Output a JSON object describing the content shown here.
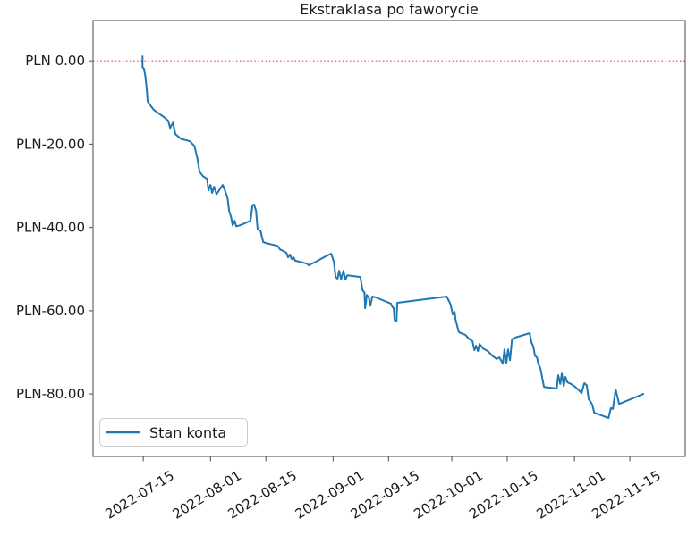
{
  "chart_data": {
    "type": "line",
    "title": "Ekstraklasa po faworycie",
    "x_axis": {
      "unit": "date",
      "tick_labels": [
        "2022-07-15",
        "2022-08-01",
        "2022-08-15",
        "2022-09-01",
        "2022-09-15",
        "2022-10-01",
        "2022-10-15",
        "2022-11-01",
        "2022-11-15"
      ],
      "tick_day_offsets": [
        0,
        17,
        31,
        48,
        62,
        78,
        92,
        109,
        123
      ],
      "range_days": [
        -12.7,
        137.0
      ],
      "label_rotation_deg": 32
    },
    "y_axis": {
      "currency": "PLN",
      "tick_labels": [
        "PLN 0.00",
        "PLN-20.00",
        "PLN-40.00",
        "PLN-60.00",
        "PLN-80.00"
      ],
      "tick_values": [
        0,
        -20,
        -40,
        -60,
        -80
      ],
      "range": [
        -95.0,
        9.7
      ]
    },
    "grid": false,
    "reference_line": {
      "value": 0,
      "style": "dotted",
      "color": "#ff3232"
    },
    "legend": {
      "position": "lower left",
      "entries": [
        {
          "label": "Stan konta",
          "color": "#1f77b4"
        }
      ]
    },
    "colors": {
      "line": "#1f77b4",
      "zero_line": "#ff3232",
      "spine": "#666666",
      "text": "#1a1a1a",
      "legend_border": "#cccccc",
      "background": "#ffffff"
    },
    "series": [
      {
        "name": "Stan konta",
        "color": "#1f77b4",
        "x_unit": "days_since_2022-07-15",
        "points": [
          [
            -0.2,
            1.1
          ],
          [
            -0.2,
            -1.5
          ],
          [
            0.2,
            -1.9
          ],
          [
            0.5,
            -3.6
          ],
          [
            0.9,
            -6.9
          ],
          [
            1.1,
            -9.7
          ],
          [
            1.8,
            -10.7
          ],
          [
            2.7,
            -11.8
          ],
          [
            5.2,
            -13.5
          ],
          [
            6.3,
            -14.4
          ],
          [
            6.8,
            -16.1
          ],
          [
            7.5,
            -14.8
          ],
          [
            8.1,
            -17.6
          ],
          [
            9.5,
            -18.7
          ],
          [
            11.8,
            -19.3
          ],
          [
            12.9,
            -20.4
          ],
          [
            13.3,
            -21.9
          ],
          [
            13.8,
            -24.0
          ],
          [
            14.2,
            -26.6
          ],
          [
            15.1,
            -27.7
          ],
          [
            16.1,
            -28.3
          ],
          [
            16.5,
            -31.1
          ],
          [
            17.0,
            -29.8
          ],
          [
            17.4,
            -31.7
          ],
          [
            17.9,
            -30.2
          ],
          [
            18.5,
            -32.0
          ],
          [
            20.1,
            -29.8
          ],
          [
            20.8,
            -31.5
          ],
          [
            21.3,
            -33.0
          ],
          [
            21.7,
            -36.0
          ],
          [
            22.2,
            -37.5
          ],
          [
            22.6,
            -39.5
          ],
          [
            23.1,
            -38.4
          ],
          [
            23.5,
            -39.7
          ],
          [
            24.4,
            -39.5
          ],
          [
            27.1,
            -38.4
          ],
          [
            27.6,
            -34.7
          ],
          [
            28.0,
            -34.5
          ],
          [
            28.5,
            -36.0
          ],
          [
            28.9,
            -40.5
          ],
          [
            29.6,
            -40.8
          ],
          [
            30.1,
            -42.7
          ],
          [
            30.3,
            -43.5
          ],
          [
            31.2,
            -43.8
          ],
          [
            33.9,
            -44.4
          ],
          [
            34.6,
            -45.3
          ],
          [
            35.5,
            -45.7
          ],
          [
            36.2,
            -46.1
          ],
          [
            36.6,
            -47.2
          ],
          [
            37.1,
            -46.5
          ],
          [
            37.5,
            -47.6
          ],
          [
            38.0,
            -47.2
          ],
          [
            38.4,
            -48.0
          ],
          [
            41.4,
            -48.7
          ],
          [
            41.8,
            -49.1
          ],
          [
            44.1,
            -48.0
          ],
          [
            46.4,
            -46.8
          ],
          [
            47.5,
            -46.3
          ],
          [
            48.2,
            -48.3
          ],
          [
            48.6,
            -51.9
          ],
          [
            49.1,
            -52.3
          ],
          [
            49.5,
            -50.4
          ],
          [
            50.0,
            -52.5
          ],
          [
            50.6,
            -50.4
          ],
          [
            51.1,
            -52.5
          ],
          [
            51.6,
            -51.5
          ],
          [
            54.9,
            -51.9
          ],
          [
            55.4,
            -55.1
          ],
          [
            55.9,
            -55.6
          ],
          [
            56.1,
            -59.4
          ],
          [
            56.5,
            -56.2
          ],
          [
            57.0,
            -56.8
          ],
          [
            57.4,
            -58.8
          ],
          [
            57.9,
            -56.6
          ],
          [
            58.8,
            -56.8
          ],
          [
            62.6,
            -58.3
          ],
          [
            62.9,
            -59.0
          ],
          [
            63.3,
            -59.4
          ],
          [
            63.5,
            -62.2
          ],
          [
            64.0,
            -62.6
          ],
          [
            64.2,
            -58.1
          ],
          [
            76.7,
            -56.6
          ],
          [
            77.6,
            -58.3
          ],
          [
            78.0,
            -59.9
          ],
          [
            78.2,
            -60.9
          ],
          [
            78.7,
            -60.3
          ],
          [
            78.9,
            -62.0
          ],
          [
            79.4,
            -63.9
          ],
          [
            79.8,
            -65.2
          ],
          [
            81.4,
            -65.8
          ],
          [
            82.5,
            -66.9
          ],
          [
            83.2,
            -67.3
          ],
          [
            83.7,
            -69.5
          ],
          [
            84.1,
            -68.4
          ],
          [
            84.6,
            -69.7
          ],
          [
            85.0,
            -68.0
          ],
          [
            85.5,
            -68.6
          ],
          [
            85.9,
            -69.1
          ],
          [
            87.1,
            -69.7
          ],
          [
            88.2,
            -70.8
          ],
          [
            89.3,
            -71.6
          ],
          [
            90.0,
            -71.2
          ],
          [
            90.9,
            -72.7
          ],
          [
            91.3,
            -69.3
          ],
          [
            91.8,
            -72.5
          ],
          [
            92.2,
            -69.3
          ],
          [
            92.7,
            -71.9
          ],
          [
            93.2,
            -66.9
          ],
          [
            93.8,
            -66.5
          ],
          [
            97.7,
            -65.4
          ],
          [
            98.1,
            -67.6
          ],
          [
            98.6,
            -68.6
          ],
          [
            99.0,
            -70.8
          ],
          [
            99.5,
            -71.2
          ],
          [
            99.9,
            -72.9
          ],
          [
            100.4,
            -73.8
          ],
          [
            100.8,
            -75.9
          ],
          [
            101.3,
            -78.3
          ],
          [
            104.5,
            -78.7
          ],
          [
            104.9,
            -75.5
          ],
          [
            105.4,
            -77.6
          ],
          [
            105.8,
            -75.1
          ],
          [
            106.3,
            -78.1
          ],
          [
            106.7,
            -75.9
          ],
          [
            107.2,
            -77.2
          ],
          [
            108.1,
            -77.6
          ],
          [
            109.2,
            -78.3
          ],
          [
            110.1,
            -79.1
          ],
          [
            110.8,
            -79.8
          ],
          [
            111.5,
            -77.4
          ],
          [
            112.1,
            -77.9
          ],
          [
            112.6,
            -81.3
          ],
          [
            113.1,
            -81.9
          ],
          [
            113.5,
            -82.6
          ],
          [
            114.0,
            -84.5
          ],
          [
            117.1,
            -85.6
          ],
          [
            117.6,
            -85.8
          ],
          [
            118.2,
            -83.4
          ],
          [
            118.7,
            -83.6
          ],
          [
            119.4,
            -78.9
          ],
          [
            120.3,
            -82.4
          ],
          [
            126.4,
            -80.0
          ]
        ]
      }
    ]
  }
}
